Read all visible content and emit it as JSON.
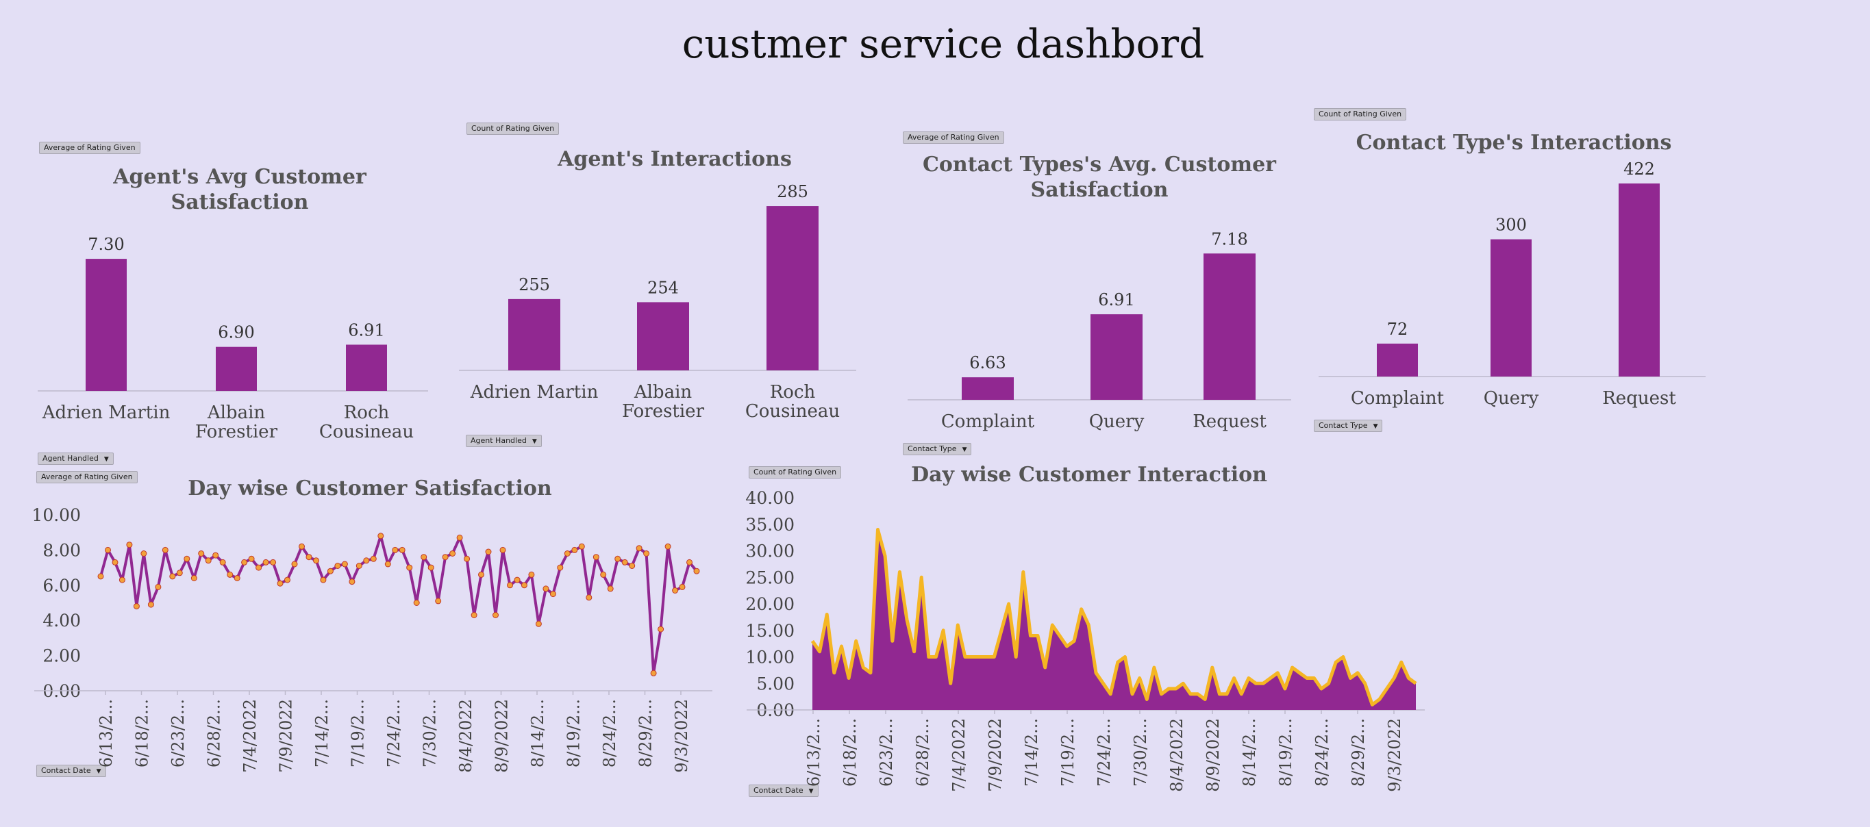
{
  "title": "custmer service dashbord",
  "colors": {
    "background": "#e3dff5",
    "bar": "#912891",
    "line": "#912891",
    "marker": "#f2a13a",
    "area_fill": "#912891",
    "area_line": "#f5b623",
    "text": "#444444",
    "axis": "#bdb9cc"
  },
  "buttons": {
    "agent_avg": {
      "field": "Average of Rating Given"
    },
    "agent_count": {
      "field": "Count of Rating Given"
    },
    "type_avg": {
      "field": "Average of Rating Given"
    },
    "type_count": {
      "field": "Count of Rating Given"
    },
    "agent_handled_1": {
      "label": "Agent Handled",
      "icon": "chevron-down-icon"
    },
    "agent_handled_2": {
      "label": "Agent Handled",
      "icon": "chevron-down-icon"
    },
    "contact_type_1": {
      "label": "Contact Type",
      "icon": "chevron-down-icon"
    },
    "contact_type_2": {
      "label": "Contact Type",
      "icon": "chevron-down-icon"
    },
    "day_avg": {
      "field": "Average of Rating Given"
    },
    "day_count": {
      "field": "Count of Rating Given"
    },
    "contact_date_1": {
      "label": "Contact Date",
      "icon": "chevron-down-icon"
    },
    "contact_date_2": {
      "label": "Contact Date",
      "icon": "chevron-down-icon"
    }
  },
  "chart_data": [
    {
      "type": "bar",
      "title": "Agent's Avg Customer Satisfaction",
      "title_lines": [
        "Agent's Avg Customer",
        "Satisfaction"
      ],
      "categories": [
        [
          "Adrien Martin"
        ],
        [
          "Albain",
          "Forestier"
        ],
        [
          "Roch",
          "Cousineau"
        ]
      ],
      "values": [
        7.3,
        6.9,
        6.91
      ],
      "labels": [
        "7.30",
        "6.90",
        "6.91"
      ],
      "ylim": [
        6.7,
        7.35
      ],
      "grid": false,
      "legend": "none"
    },
    {
      "type": "bar",
      "title": "Agent's  Interactions",
      "title_lines": [
        "Agent's  Interactions"
      ],
      "categories": [
        [
          "Adrien Martin"
        ],
        [
          "Albain",
          "Forestier"
        ],
        [
          "Roch",
          "Cousineau"
        ]
      ],
      "values": [
        255,
        254,
        285
      ],
      "labels": [
        "255",
        "254",
        "285"
      ],
      "ylim": [
        232,
        287
      ],
      "grid": false,
      "legend": "none"
    },
    {
      "type": "bar",
      "title": "Contact Types's Avg. Customer Satisfaction",
      "title_lines": [
        "Contact Types's Avg. Customer",
        "Satisfaction"
      ],
      "categories": [
        [
          "Complaint"
        ],
        [
          "Query"
        ],
        [
          "Request"
        ]
      ],
      "values": [
        6.63,
        6.91,
        7.18
      ],
      "labels": [
        "6.63",
        "6.91",
        "7.18"
      ],
      "ylim": [
        6.53,
        7.19
      ],
      "grid": false,
      "legend": "none"
    },
    {
      "type": "bar",
      "title": "Contact Type's  Interactions",
      "title_lines": [
        "Contact Type's  Interactions"
      ],
      "categories": [
        [
          "Complaint"
        ],
        [
          "Query"
        ],
        [
          "Request"
        ]
      ],
      "values": [
        72,
        300,
        422
      ],
      "labels": [
        "72",
        "300",
        "422"
      ],
      "ylim": [
        0,
        425
      ],
      "grid": false,
      "legend": "none"
    },
    {
      "type": "line",
      "title": "Day wise Customer Satisfaction",
      "ylim": [
        0,
        10
      ],
      "yticks": [
        "0.00",
        "2.00",
        "4.00",
        "6.00",
        "8.00",
        "10.00"
      ],
      "xticks": [
        "6/13/2...",
        "6/18/2...",
        "6/23/2...",
        "6/28/2...",
        "7/4/2022",
        "7/9/2022",
        "7/14/2...",
        "7/19/2...",
        "7/24/2...",
        "7/30/2...",
        "8/4/2022",
        "8/9/2022",
        "8/14/2...",
        "8/19/2...",
        "8/24/2...",
        "8/29/2...",
        "9/3/2022"
      ],
      "values": [
        6.5,
        8.0,
        7.3,
        6.3,
        8.3,
        4.8,
        7.8,
        4.9,
        5.9,
        8.0,
        6.5,
        6.7,
        7.5,
        6.4,
        7.8,
        7.4,
        7.7,
        7.3,
        6.6,
        6.4,
        7.3,
        7.5,
        7.0,
        7.3,
        7.3,
        6.1,
        6.3,
        7.2,
        8.2,
        7.6,
        7.4,
        6.3,
        6.8,
        7.1,
        7.2,
        6.2,
        7.1,
        7.4,
        7.5,
        8.8,
        7.2,
        8.0,
        8.0,
        7.0,
        5.0,
        7.6,
        7.0,
        5.1,
        7.6,
        7.8,
        8.7,
        7.5,
        4.3,
        6.6,
        7.9,
        4.3,
        8.0,
        6.0,
        6.3,
        6.0,
        6.6,
        3.8,
        5.8,
        5.5,
        7.0,
        7.8,
        8.0,
        8.2,
        5.3,
        7.6,
        6.6,
        5.8,
        7.5,
        7.3,
        7.1,
        8.1,
        7.8,
        1.0,
        3.5,
        8.2,
        5.7,
        5.9,
        7.3,
        6.8
      ],
      "grid": false,
      "legend": "none"
    },
    {
      "type": "area",
      "title": "Day wise Customer Interaction",
      "ylim": [
        0,
        40
      ],
      "yticks": [
        "0.00",
        "5.00",
        "10.00",
        "15.00",
        "20.00",
        "25.00",
        "30.00",
        "35.00",
        "40.00"
      ],
      "xticks": [
        "6/13/2...",
        "6/18/2...",
        "6/23/2...",
        "6/28/2...",
        "7/4/2022",
        "7/9/2022",
        "7/14/2...",
        "7/19/2...",
        "7/24/2...",
        "7/30/2...",
        "8/4/2022",
        "8/9/2022",
        "8/14/2...",
        "8/19/2...",
        "8/24/2...",
        "8/29/2...",
        "9/3/2022"
      ],
      "values": [
        13,
        11,
        18,
        7,
        12,
        6,
        13,
        8,
        7,
        34,
        29,
        13,
        26,
        17,
        11,
        25,
        10,
        10,
        15,
        5,
        16,
        10,
        10,
        10,
        10,
        10,
        15,
        20,
        10,
        26,
        14,
        14,
        8,
        16,
        14,
        12,
        13,
        19,
        16,
        7,
        5,
        3,
        9,
        10,
        3,
        6,
        2,
        8,
        3,
        4,
        4,
        5,
        3,
        3,
        2,
        8,
        3,
        3,
        6,
        3,
        6,
        5,
        5,
        6,
        7,
        4,
        8,
        7,
        6,
        6,
        4,
        5,
        9,
        10,
        6,
        7,
        5,
        1,
        2,
        4,
        6,
        9,
        6,
        5
      ],
      "grid": false,
      "legend": "none"
    }
  ]
}
